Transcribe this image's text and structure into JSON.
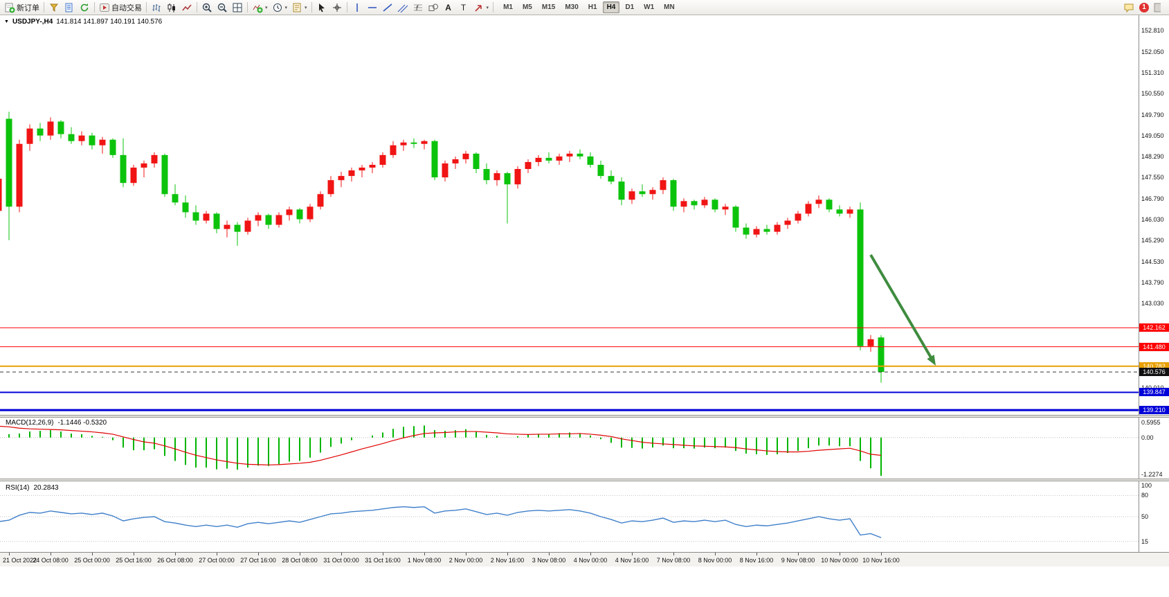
{
  "toolbar": {
    "groups": [
      {
        "items": [
          {
            "name": "new-order-button",
            "icon": "new-order",
            "label": "新订单"
          }
        ]
      },
      {
        "items": [
          {
            "name": "funnel-icon-button",
            "icon": "funnel"
          },
          {
            "name": "document-icon-button",
            "icon": "document"
          },
          {
            "name": "refresh-icon-button",
            "icon": "refresh"
          }
        ]
      },
      {
        "items": [
          {
            "name": "autotrading-button",
            "icon": "autotrading",
            "label": "自动交易"
          }
        ]
      },
      {
        "items": [
          {
            "name": "bar-chart-button",
            "icon": "bar-chart"
          },
          {
            "name": "candlestick-chart-button",
            "icon": "candle-chart"
          },
          {
            "name": "line-chart-button",
            "icon": "line-chart"
          }
        ]
      },
      {
        "items": [
          {
            "name": "zoom-in-button",
            "icon": "zoom-in"
          },
          {
            "name": "zoom-out-button",
            "icon": "zoom-out"
          },
          {
            "name": "tile-windows-button",
            "icon": "tile-windows"
          }
        ]
      },
      {
        "items": [
          {
            "name": "indicators-button",
            "icon": "indicators",
            "dropdown": true
          },
          {
            "name": "periods-button",
            "icon": "clock",
            "dropdown": true
          },
          {
            "name": "templates-button",
            "icon": "template",
            "dropdown": true
          }
        ]
      },
      {
        "items": [
          {
            "name": "cursor-button",
            "icon": "cursor"
          },
          {
            "name": "crosshair-button",
            "icon": "crosshair"
          }
        ]
      },
      {
        "items": [
          {
            "name": "vertical-line-button",
            "icon": "vertical-line"
          },
          {
            "name": "horizontal-line-button",
            "icon": "horizontal-line"
          },
          {
            "name": "trendline-button",
            "icon": "trendline"
          },
          {
            "name": "equidistant-channel-button",
            "icon": "channel"
          },
          {
            "name": "fibonacci-button",
            "icon": "fibonacci"
          },
          {
            "name": "shapes-button",
            "icon": "shapes"
          },
          {
            "name": "text-button",
            "icon": "text"
          },
          {
            "name": "text-label-button",
            "icon": "label"
          },
          {
            "name": "arrows-button",
            "icon": "arrow",
            "dropdown": true
          }
        ]
      }
    ],
    "timeframes": [
      "M1",
      "M5",
      "M15",
      "M30",
      "H1",
      "H4",
      "D1",
      "W1",
      "MN"
    ],
    "active_timeframe": "H4",
    "notification_count": "1"
  },
  "chart": {
    "title": "USDJPY-,H4",
    "ohlc": "141.814 141.897 140.191 140.576"
  },
  "chart_data": {
    "type": "candlestick",
    "symbol": "USDJPY-",
    "period": "H4",
    "ohlc_current": {
      "open": "141.814",
      "high": "141.897",
      "low": "140.191",
      "close": "140.576"
    },
    "ylim": [
      139.04,
      153.36
    ],
    "up_color": "#f01414",
    "down_color": "#0cc30c",
    "y_tick_labels": [
      "152.810",
      "152.050",
      "151.310",
      "150.550",
      "149.790",
      "149.050",
      "148.290",
      "147.550",
      "146.790",
      "146.030",
      "145.290",
      "144.530",
      "143.790",
      "143.030",
      "140.010"
    ],
    "time_labels": [
      "21 Oct 2022",
      "24 Oct 08:00",
      "25 Oct 00:00",
      "25 Oct 16:00",
      "26 Oct 08:00",
      "27 Oct 00:00",
      "27 Oct 16:00",
      "28 Oct 08:00",
      "31 Oct 00:00",
      "31 Oct 16:00",
      "1 Nov 08:00",
      "2 Nov 00:00",
      "2 Nov 16:00",
      "3 Nov 08:00",
      "4 Nov 00:00",
      "4 Nov 16:00",
      "7 Nov 08:00",
      "8 Nov 00:00",
      "8 Nov 16:00",
      "9 Nov 08:00",
      "10 Nov 00:00",
      "10 Nov 16:00"
    ],
    "candles": [
      [
        146.35,
        147.6,
        146.2,
        147.5
      ],
      [
        149.65,
        149.9,
        145.3,
        146.5
      ],
      [
        146.5,
        148.9,
        146.3,
        148.75
      ],
      [
        148.75,
        149.45,
        148.5,
        149.3
      ],
      [
        149.3,
        149.5,
        148.85,
        149.05
      ],
      [
        149.05,
        149.7,
        148.9,
        149.55
      ],
      [
        149.55,
        149.6,
        148.95,
        149.1
      ],
      [
        149.1,
        149.35,
        148.75,
        148.85
      ],
      [
        148.85,
        149.2,
        148.7,
        149.05
      ],
      [
        149.05,
        149.15,
        148.55,
        148.7
      ],
      [
        148.7,
        149.0,
        148.4,
        148.9
      ],
      [
        148.9,
        148.95,
        148.25,
        148.35
      ],
      [
        148.35,
        148.95,
        147.2,
        147.35
      ],
      [
        147.35,
        148.0,
        147.25,
        147.9
      ],
      [
        147.9,
        148.15,
        147.55,
        148.05
      ],
      [
        148.05,
        148.45,
        147.9,
        148.35
      ],
      [
        148.35,
        148.4,
        146.85,
        146.95
      ],
      [
        146.95,
        147.3,
        146.55,
        146.65
      ],
      [
        146.65,
        146.9,
        146.1,
        146.3
      ],
      [
        146.3,
        146.55,
        145.85,
        146.0
      ],
      [
        146.0,
        146.35,
        145.9,
        146.25
      ],
      [
        146.25,
        146.3,
        145.55,
        145.7
      ],
      [
        145.7,
        146.0,
        145.4,
        145.85
      ],
      [
        145.85,
        145.95,
        145.1,
        145.6
      ],
      [
        145.6,
        146.1,
        145.5,
        146.0
      ],
      [
        146.0,
        146.3,
        145.8,
        146.2
      ],
      [
        146.2,
        146.25,
        145.7,
        145.85
      ],
      [
        145.85,
        146.3,
        145.75,
        146.2
      ],
      [
        146.2,
        146.5,
        146.0,
        146.4
      ],
      [
        146.4,
        146.45,
        145.9,
        146.05
      ],
      [
        146.05,
        146.6,
        145.95,
        146.5
      ],
      [
        146.5,
        147.05,
        146.4,
        146.95
      ],
      [
        146.95,
        147.6,
        146.85,
        147.45
      ],
      [
        147.45,
        147.75,
        147.2,
        147.6
      ],
      [
        147.6,
        147.9,
        147.4,
        147.8
      ],
      [
        147.8,
        148.0,
        147.55,
        147.9
      ],
      [
        147.9,
        148.1,
        147.7,
        148.0
      ],
      [
        148.0,
        148.45,
        147.9,
        148.35
      ],
      [
        148.35,
        148.85,
        148.25,
        148.7
      ],
      [
        148.7,
        148.9,
        148.5,
        148.8
      ],
      [
        148.8,
        148.95,
        148.6,
        148.75
      ],
      [
        148.75,
        148.9,
        148.55,
        148.85
      ],
      [
        148.85,
        148.9,
        147.45,
        147.55
      ],
      [
        147.55,
        148.15,
        147.4,
        148.05
      ],
      [
        148.05,
        148.3,
        147.85,
        148.2
      ],
      [
        148.2,
        148.5,
        148.05,
        148.4
      ],
      [
        148.4,
        148.45,
        147.7,
        147.85
      ],
      [
        147.85,
        148.05,
        147.3,
        147.45
      ],
      [
        147.45,
        147.8,
        147.25,
        147.7
      ],
      [
        147.7,
        147.75,
        145.9,
        147.3
      ],
      [
        147.3,
        147.95,
        147.15,
        147.85
      ],
      [
        147.85,
        148.2,
        147.7,
        148.1
      ],
      [
        148.1,
        148.35,
        147.95,
        148.25
      ],
      [
        148.25,
        148.45,
        148.05,
        148.15
      ],
      [
        148.15,
        148.4,
        148.0,
        148.3
      ],
      [
        148.3,
        148.5,
        148.1,
        148.4
      ],
      [
        148.4,
        148.55,
        148.2,
        148.3
      ],
      [
        148.3,
        148.45,
        147.9,
        148.0
      ],
      [
        148.0,
        148.15,
        147.5,
        147.6
      ],
      [
        147.6,
        147.8,
        147.3,
        147.4
      ],
      [
        147.4,
        147.55,
        146.55,
        146.75
      ],
      [
        146.75,
        147.15,
        146.6,
        147.05
      ],
      [
        147.05,
        147.3,
        146.85,
        146.95
      ],
      [
        146.95,
        147.2,
        146.75,
        147.1
      ],
      [
        147.1,
        147.55,
        146.95,
        147.45
      ],
      [
        147.45,
        147.5,
        146.35,
        146.5
      ],
      [
        146.5,
        146.8,
        146.3,
        146.7
      ],
      [
        146.7,
        146.75,
        146.4,
        146.55
      ],
      [
        146.55,
        146.85,
        146.45,
        146.75
      ],
      [
        146.75,
        146.8,
        146.3,
        146.4
      ],
      [
        146.4,
        146.6,
        146.2,
        146.5
      ],
      [
        146.5,
        146.55,
        145.6,
        145.75
      ],
      [
        145.75,
        145.9,
        145.35,
        145.5
      ],
      [
        145.5,
        145.8,
        145.4,
        145.7
      ],
      [
        145.7,
        145.85,
        145.5,
        145.6
      ],
      [
        145.6,
        145.95,
        145.5,
        145.85
      ],
      [
        145.85,
        146.1,
        145.7,
        146.0
      ],
      [
        146.0,
        146.35,
        145.9,
        146.25
      ],
      [
        146.25,
        146.7,
        146.15,
        146.6
      ],
      [
        146.6,
        146.9,
        146.45,
        146.75
      ],
      [
        146.75,
        146.8,
        146.3,
        146.4
      ],
      [
        146.4,
        146.55,
        146.15,
        146.25
      ],
      [
        146.25,
        146.5,
        146.1,
        146.4
      ],
      [
        146.4,
        146.65,
        141.35,
        141.5
      ],
      [
        141.5,
        141.9,
        141.3,
        141.75
      ],
      [
        141.814,
        141.897,
        140.191,
        140.576
      ]
    ],
    "price_lines": [
      {
        "name": "resistance-line-upper",
        "label": "142.162",
        "price": 142.162,
        "color": "#fe0000",
        "width": 1,
        "style": "solid"
      },
      {
        "name": "resistance-line-lower",
        "label": "141.480",
        "price": 141.48,
        "color": "#fe0000",
        "width": 1,
        "style": "solid"
      },
      {
        "name": "gold-support-line",
        "label": "140.782",
        "price": 140.782,
        "color": "#e8a000",
        "width": 2,
        "style": "solid"
      },
      {
        "name": "current-price-line",
        "label": "140.576",
        "price": 140.576,
        "color": "#383838",
        "width": 1,
        "style": "dashed",
        "badge": "#101010"
      },
      {
        "name": "blue-support-line-upper",
        "label": "139.847",
        "price": 139.847,
        "color": "#0000d8",
        "width": 2,
        "style": "solid"
      },
      {
        "name": "blue-support-line-lower",
        "label": "139.210",
        "price": 139.21,
        "color": "#0000d8",
        "width": 3,
        "style": "solid"
      }
    ],
    "indicators": {
      "macd": {
        "label": "MACD(12,26,9)",
        "values_text": "-1.1446 -0.5320",
        "ylim": [
          -1.2274,
          0.5955
        ],
        "scale_labels": [
          "0.5955",
          "0.00",
          "-1.2274"
        ],
        "histogram_color": "#00b400",
        "signal_color": "#e00000",
        "histogram": [
          0.08,
          0.1,
          0.12,
          0.18,
          0.2,
          0.22,
          0.18,
          0.12,
          0.1,
          0.05,
          0.02,
          -0.08,
          -0.3,
          -0.38,
          -0.38,
          -0.35,
          -0.55,
          -0.7,
          -0.82,
          -0.9,
          -0.9,
          -0.95,
          -0.93,
          -0.96,
          -0.9,
          -0.84,
          -0.85,
          -0.8,
          -0.72,
          -0.7,
          -0.6,
          -0.45,
          -0.28,
          -0.18,
          -0.08,
          0.0,
          0.06,
          0.15,
          0.26,
          0.32,
          0.34,
          0.36,
          0.22,
          0.2,
          0.22,
          0.25,
          0.18,
          0.08,
          0.05,
          0.0,
          0.04,
          0.08,
          0.11,
          0.11,
          0.13,
          0.15,
          0.12,
          0.06,
          -0.05,
          -0.16,
          -0.3,
          -0.31,
          -0.33,
          -0.3,
          -0.24,
          -0.32,
          -0.32,
          -0.33,
          -0.3,
          -0.32,
          -0.3,
          -0.4,
          -0.48,
          -0.5,
          -0.52,
          -0.5,
          -0.46,
          -0.4,
          -0.32,
          -0.24,
          -0.24,
          -0.26,
          -0.26,
          -0.7,
          -0.92,
          -1.1446
        ],
        "signal": [
          0.34,
          0.32,
          0.28,
          0.26,
          0.25,
          0.24,
          0.23,
          0.21,
          0.19,
          0.17,
          0.14,
          0.1,
          0.02,
          -0.06,
          -0.13,
          -0.17,
          -0.25,
          -0.34,
          -0.44,
          -0.53,
          -0.6,
          -0.67,
          -0.72,
          -0.77,
          -0.8,
          -0.81,
          -0.82,
          -0.81,
          -0.79,
          -0.77,
          -0.74,
          -0.68,
          -0.6,
          -0.52,
          -0.43,
          -0.34,
          -0.26,
          -0.18,
          -0.09,
          -0.01,
          0.06,
          0.12,
          0.14,
          0.15,
          0.17,
          0.18,
          0.18,
          0.16,
          0.14,
          0.11,
          0.1,
          0.09,
          0.1,
          0.1,
          0.11,
          0.11,
          0.12,
          0.1,
          0.07,
          0.03,
          -0.04,
          -0.09,
          -0.14,
          -0.17,
          -0.19,
          -0.21,
          -0.23,
          -0.25,
          -0.26,
          -0.27,
          -0.28,
          -0.3,
          -0.34,
          -0.37,
          -0.4,
          -0.42,
          -0.43,
          -0.43,
          -0.41,
          -0.38,
          -0.36,
          -0.34,
          -0.32,
          -0.4,
          -0.5,
          -0.532
        ]
      },
      "rsi": {
        "label": "RSI(14)",
        "value_text": "20.2843",
        "ylim": [
          0,
          100
        ],
        "levels": [
          80,
          50,
          15
        ],
        "scale_labels": [
          "100",
          "80",
          "50",
          "15"
        ],
        "line_color": "#3f7fca",
        "values": [
          43,
          45,
          52,
          56,
          55,
          58,
          56,
          54,
          55,
          53,
          55,
          51,
          44,
          47,
          49,
          50,
          43,
          41,
          38,
          36,
          38,
          36,
          38,
          35,
          40,
          42,
          40,
          42,
          44,
          42,
          46,
          50,
          54,
          55,
          57,
          58,
          59,
          61,
          63,
          64,
          63,
          64,
          55,
          58,
          59,
          61,
          57,
          53,
          55,
          52,
          56,
          58,
          59,
          58,
          59,
          60,
          58,
          55,
          50,
          46,
          41,
          44,
          43,
          45,
          48,
          42,
          44,
          43,
          45,
          43,
          45,
          39,
          36,
          38,
          37,
          39,
          41,
          44,
          47,
          50,
          47,
          45,
          47,
          24,
          26,
          20.2843
        ]
      }
    },
    "annotations": [
      {
        "name": "sell-signal-arrow",
        "type": "arrow",
        "color": "#3f8c3f",
        "from": [
          1258,
          368
        ],
        "to": [
          1352,
          528
        ]
      }
    ]
  }
}
